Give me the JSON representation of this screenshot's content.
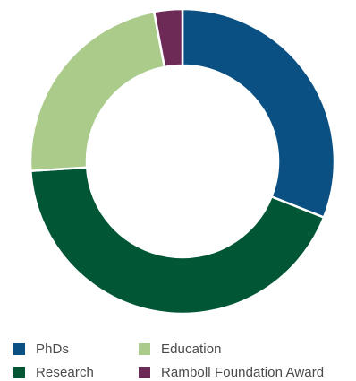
{
  "chart_data": {
    "type": "pie",
    "variant": "donut",
    "title": "",
    "categories": [
      "PhDs",
      "Research",
      "Education",
      "Ramboll Foundation Award"
    ],
    "values": [
      31,
      43,
      23,
      3
    ],
    "colors": [
      "#0a5083",
      "#005635",
      "#abcb8b",
      "#6e2a56"
    ],
    "start_at": "top",
    "direction": "clockwise",
    "legend_position": "bottom",
    "legend_order": [
      "PhDs",
      "Education",
      "Research",
      "Ramboll Foundation Award"
    ]
  }
}
